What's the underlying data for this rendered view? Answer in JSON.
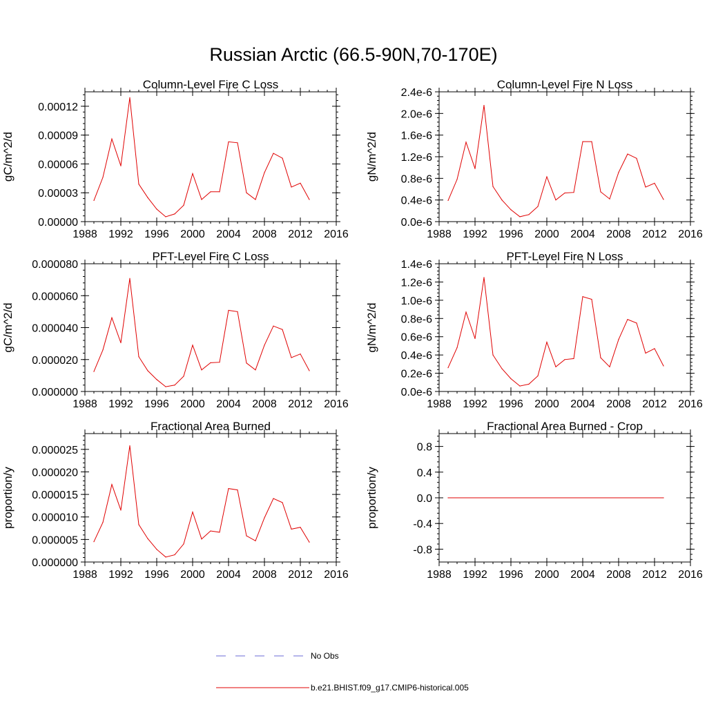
{
  "figure": {
    "title": "Russian Arctic (66.5-90N,70-170E)"
  },
  "legend": {
    "entries": [
      {
        "label": "No Obs",
        "style": "dashed",
        "color": "#6b6bd6"
      },
      {
        "label": "b.e21.BHIST.f09_g17.CMIP6-historical.005",
        "style": "solid",
        "color": "#e00000"
      }
    ]
  },
  "chart_data": [
    {
      "type": "line",
      "title": "Column-Level Fire C Loss",
      "ylabel": "gC/m^2/d",
      "xlim": [
        1988,
        2016
      ],
      "xticks": [
        1988,
        1992,
        1996,
        2000,
        2004,
        2008,
        2012,
        2016
      ],
      "ylim": [
        0,
        0.000135
      ],
      "yticks": [
        "0.00000",
        "0.00003",
        "0.00006",
        "0.00009",
        "0.00012"
      ],
      "ytick_values": [
        0,
        3e-05,
        6e-05,
        9e-05,
        0.00012
      ],
      "series": [
        {
          "color": "#e00000",
          "style": "solid",
          "x": [
            1989,
            1990,
            1991,
            1992,
            1993,
            1994,
            1995,
            1996,
            1997,
            1998,
            1999,
            2000,
            2001,
            2002,
            2003,
            2004,
            2005,
            2006,
            2007,
            2008,
            2009,
            2010,
            2011,
            2012,
            2013
          ],
          "values": [
            2.2e-05,
            4.6e-05,
            8.6e-05,
            5.8e-05,
            0.000129,
            3.9e-05,
            2.5e-05,
            1.3e-05,
            5e-06,
            8e-06,
            1.7e-05,
            5e-05,
            2.3e-05,
            3.1e-05,
            3.1e-05,
            8.3e-05,
            8.2e-05,
            3e-05,
            2.3e-05,
            5.1e-05,
            7.1e-05,
            6.6e-05,
            3.6e-05,
            4e-05,
            2.3e-05
          ]
        }
      ]
    },
    {
      "type": "line",
      "title": "Column-Level Fire N Loss",
      "ylabel": "gN/m^2/d",
      "xlim": [
        1988,
        2016
      ],
      "xticks": [
        1988,
        1992,
        1996,
        2000,
        2004,
        2008,
        2012,
        2016
      ],
      "ylim": [
        0,
        2.4e-06
      ],
      "yticks": [
        "0.0e-6",
        "0.4e-6",
        "0.8e-6",
        "1.2e-6",
        "1.6e-6",
        "2.0e-6",
        "2.4e-6"
      ],
      "ytick_values": [
        0,
        4e-07,
        8e-07,
        1.2e-06,
        1.6e-06,
        2e-06,
        2.4e-06
      ],
      "series": [
        {
          "color": "#e00000",
          "style": "solid",
          "x": [
            1989,
            1990,
            1991,
            1992,
            1993,
            1994,
            1995,
            1996,
            1997,
            1998,
            1999,
            2000,
            2001,
            2002,
            2003,
            2004,
            2005,
            2006,
            2007,
            2008,
            2009,
            2010,
            2011,
            2012,
            2013
          ],
          "values": [
            3.9e-07,
            7.8e-07,
            1.47e-06,
            9.8e-07,
            2.15e-06,
            6.5e-07,
            4e-07,
            2.2e-07,
            9e-08,
            1.3e-07,
            2.8e-07,
            8.3e-07,
            4e-07,
            5.3e-07,
            5.4e-07,
            1.48e-06,
            1.48e-06,
            5.5e-07,
            4.2e-07,
            9.1e-07,
            1.25e-06,
            1.17e-06,
            6.4e-07,
            7.1e-07,
            4.1e-07
          ]
        }
      ]
    },
    {
      "type": "line",
      "title": "PFT-Level Fire C Loss",
      "ylabel": "gC/m^2/d",
      "xlim": [
        1988,
        2016
      ],
      "xticks": [
        1988,
        1992,
        1996,
        2000,
        2004,
        2008,
        2012,
        2016
      ],
      "ylim": [
        0,
        8e-05
      ],
      "yticks": [
        "0.000000",
        "0.000020",
        "0.000040",
        "0.000060",
        "0.000080"
      ],
      "ytick_values": [
        0,
        2e-05,
        4e-05,
        6e-05,
        8e-05
      ],
      "series": [
        {
          "color": "#e00000",
          "style": "solid",
          "x": [
            1989,
            1990,
            1991,
            1992,
            1993,
            1994,
            1995,
            1996,
            1997,
            1998,
            1999,
            2000,
            2001,
            2002,
            2003,
            2004,
            2005,
            2006,
            2007,
            2008,
            2009,
            2010,
            2011,
            2012,
            2013
          ],
          "values": [
            1.25e-05,
            2.6e-05,
            4.62e-05,
            3.05e-05,
            7.08e-05,
            2.18e-05,
            1.3e-05,
            7.5e-06,
            3e-06,
            4e-06,
            9.5e-06,
            2.9e-05,
            1.35e-05,
            1.8e-05,
            1.83e-05,
            5.08e-05,
            5e-05,
            1.78e-05,
            1.35e-05,
            2.9e-05,
            4.1e-05,
            3.88e-05,
            2.12e-05,
            2.35e-05,
            1.3e-05
          ]
        }
      ]
    },
    {
      "type": "line",
      "title": "PFT-Level Fire N Loss",
      "ylabel": "gN/m^2/d",
      "xlim": [
        1988,
        2016
      ],
      "xticks": [
        1988,
        1992,
        1996,
        2000,
        2004,
        2008,
        2012,
        2016
      ],
      "ylim": [
        0,
        1.4e-06
      ],
      "yticks": [
        "0.0e-6",
        "0.2e-6",
        "0.4e-6",
        "0.6e-6",
        "0.8e-6",
        "1.0e-6",
        "1.2e-6",
        "1.4e-6"
      ],
      "ytick_values": [
        0,
        2e-07,
        4e-07,
        6e-07,
        8e-07,
        1e-06,
        1.2e-06,
        1.4e-06
      ],
      "series": [
        {
          "color": "#e00000",
          "style": "solid",
          "x": [
            1989,
            1990,
            1991,
            1992,
            1993,
            1994,
            1995,
            1996,
            1997,
            1998,
            1999,
            2000,
            2001,
            2002,
            2003,
            2004,
            2005,
            2006,
            2007,
            2008,
            2009,
            2010,
            2011,
            2012,
            2013
          ],
          "values": [
            2.6e-07,
            4.8e-07,
            8.7e-07,
            5.8e-07,
            1.25e-06,
            4e-07,
            2.5e-07,
            1.4e-07,
            6e-08,
            8e-08,
            1.7e-07,
            5.4e-07,
            2.7e-07,
            3.5e-07,
            3.6e-07,
            1.04e-06,
            1.01e-06,
            3.7e-07,
            2.7e-07,
            5.7e-07,
            7.9e-07,
            7.5e-07,
            4.2e-07,
            4.7e-07,
            2.8e-07
          ]
        }
      ]
    },
    {
      "type": "line",
      "title": "Fractional Area Burned",
      "ylabel": "proportion/y",
      "xlim": [
        1988,
        2016
      ],
      "xticks": [
        1988,
        1992,
        1996,
        2000,
        2004,
        2008,
        2012,
        2016
      ],
      "ylim": [
        0,
        2.85e-05
      ],
      "yticks": [
        "0.000000",
        "0.000005",
        "0.000010",
        "0.000015",
        "0.000020",
        "0.000025"
      ],
      "ytick_values": [
        0,
        5e-06,
        1e-05,
        1.5e-05,
        2e-05,
        2.5e-05
      ],
      "series": [
        {
          "color": "#e00000",
          "style": "solid",
          "x": [
            1989,
            1990,
            1991,
            1992,
            1993,
            1994,
            1995,
            1996,
            1997,
            1998,
            1999,
            2000,
            2001,
            2002,
            2003,
            2004,
            2005,
            2006,
            2007,
            2008,
            2009,
            2010,
            2011,
            2012,
            2013
          ],
          "values": [
            4.5e-06,
            8.8e-06,
            1.72e-05,
            1.15e-05,
            2.58e-05,
            8.3e-06,
            5.2e-06,
            2.8e-06,
            1.1e-06,
            1.6e-06,
            4e-06,
            1.11e-05,
            5.1e-06,
            6.9e-06,
            6.6e-06,
            1.63e-05,
            1.6e-05,
            5.8e-06,
            4.7e-06,
            9.8e-06,
            1.41e-05,
            1.32e-05,
            7.3e-06,
            7.7e-06,
            4.4e-06
          ]
        }
      ]
    },
    {
      "type": "line",
      "title": "Fractional Area Burned - Crop",
      "ylabel": "proportion/y",
      "xlim": [
        1988,
        2016
      ],
      "xticks": [
        1988,
        1992,
        1996,
        2000,
        2004,
        2008,
        2012,
        2016
      ],
      "ylim": [
        -1.0,
        1.0
      ],
      "yticks": [
        "-0.8",
        "-0.4",
        "0.0",
        "0.4",
        "0.8"
      ],
      "ytick_values": [
        -0.8,
        -0.4,
        0.0,
        0.4,
        0.8
      ],
      "series": [
        {
          "color": "#e00000",
          "style": "solid",
          "x": [
            1989,
            2013
          ],
          "values": [
            0,
            0
          ]
        }
      ]
    }
  ]
}
